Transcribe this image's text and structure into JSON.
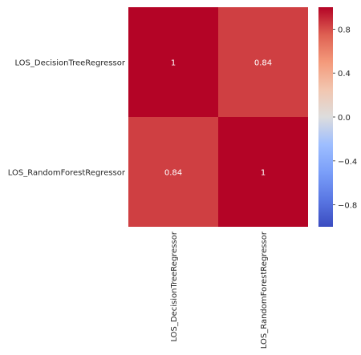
{
  "chart_data": {
    "type": "heatmap",
    "title": "",
    "xlabel": "",
    "ylabel": "",
    "row_labels": [
      "LOS_DecisionTreeRegressor",
      "LOS_RandomForestRegressor"
    ],
    "col_labels": [
      "LOS_DecisionTreeRegressor",
      "LOS_RandomForestRegressor"
    ],
    "values": [
      [
        1,
        0.84
      ],
      [
        0.84,
        1
      ]
    ],
    "cell_text": [
      [
        "1",
        "0.84"
      ],
      [
        "0.84",
        "1"
      ]
    ],
    "colormap": "coolwarm",
    "vmin": -1,
    "vmax": 1,
    "colorbar": {
      "ticks": [
        0.8,
        0.4,
        0.0,
        -0.4,
        -0.8
      ],
      "tick_labels": [
        "0.8",
        "0.4",
        "0.0",
        "−0.4",
        "−0.8"
      ]
    },
    "colors": {
      "cell_1": "#b40426",
      "cell_084": "#d24b40",
      "background": "#ffffff"
    }
  }
}
